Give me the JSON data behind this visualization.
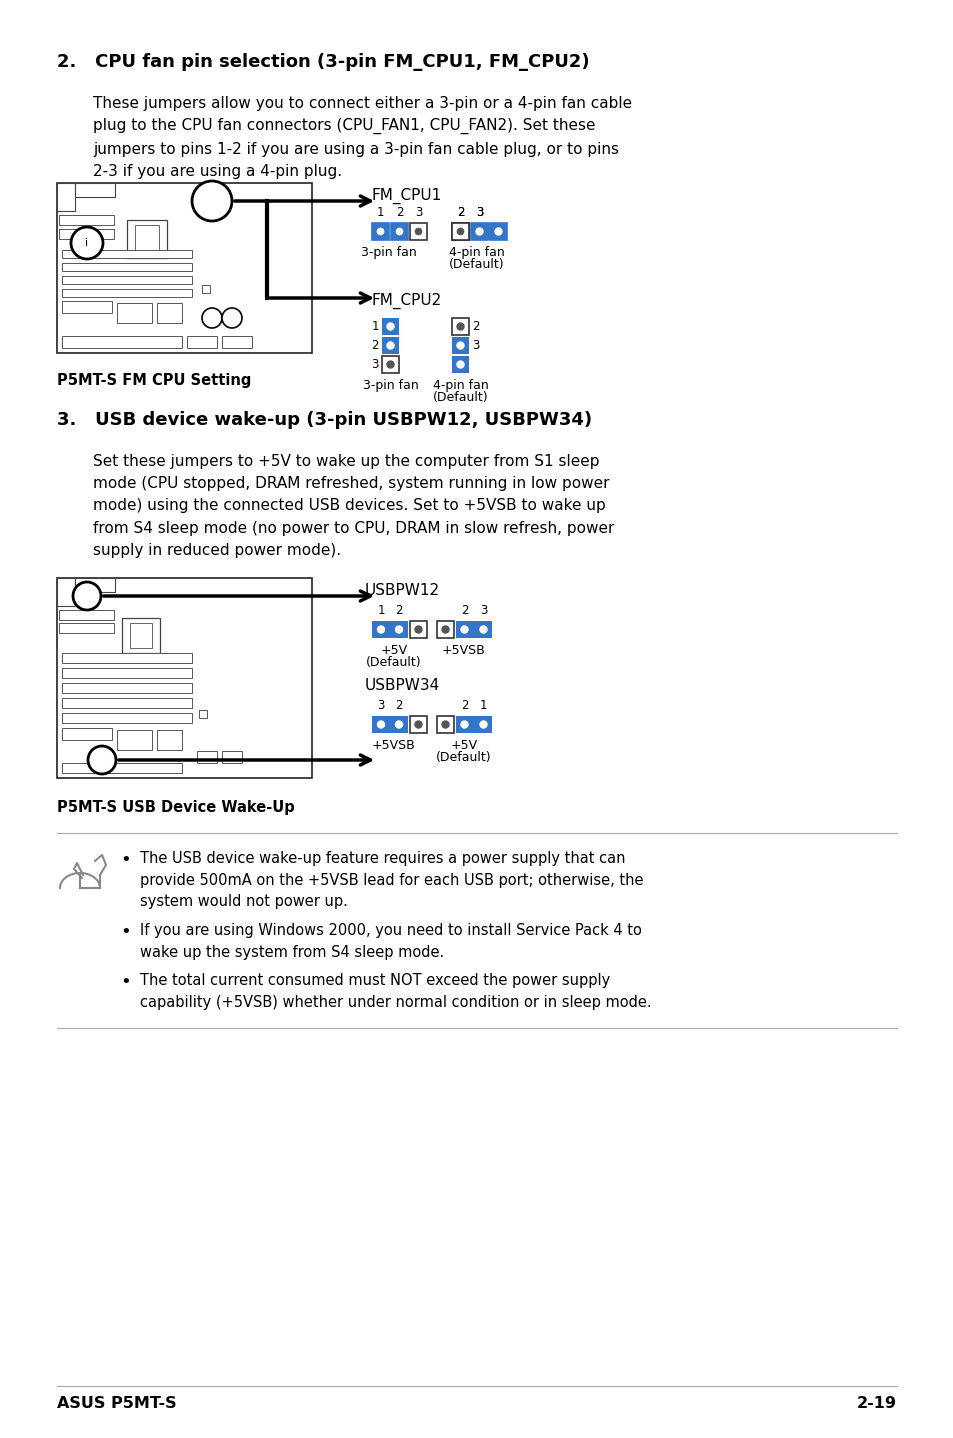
{
  "bg_color": "#ffffff",
  "text_color": "#000000",
  "blue_color": "#3375C8",
  "section2_title": "2.   CPU fan pin selection (3-pin FM_CPU1, FM_CPU2)",
  "section2_body": "These jumpers allow you to connect either a 3-pin or a 4-pin fan cable\nplug to the CPU fan connectors (CPU_FAN1, CPU_FAN2). Set these\njumpers to pins 1-2 if you are using a 3-pin fan cable plug, or to pins\n2-3 if you are using a 4-pin plug.",
  "section3_title": "3.   USB device wake-up (3-pin USBPW12, USBPW34)",
  "section3_body": "Set these jumpers to +5V to wake up the computer from S1 sleep\nmode (CPU stopped, DRAM refreshed, system running in low power\nmode) using the connected USB devices. Set to +5VSB to wake up\nfrom S4 sleep mode (no power to CPU, DRAM in slow refresh, power\nsupply in reduced power mode).",
  "caption1": "P5MT-S FM CPU Setting",
  "caption2": "P5MT-S USB Device Wake-Up",
  "footer_left": "ASUS P5MT-S",
  "footer_right": "2-19",
  "note1": "The USB device wake-up feature requires a power supply that can\nprovide 500mA on the +5VSB lead for each USB port; otherwise, the\nsystem would not power up.",
  "note2": "If you are using Windows 2000, you need to install Service Pack 4 to\nwake up the system from S4 sleep mode.",
  "note3": "The total current consumed must NOT exceed the power supply\ncapability (+5VSB) whether under normal condition or in sleep mode."
}
